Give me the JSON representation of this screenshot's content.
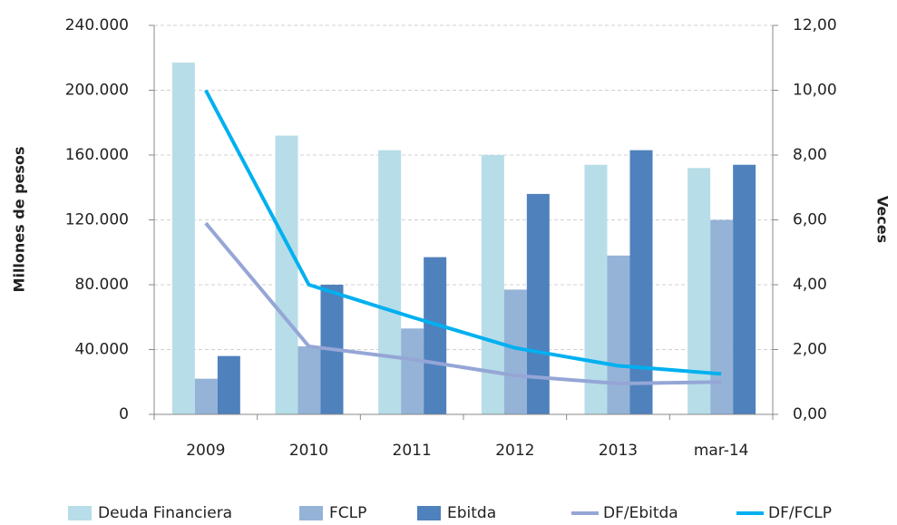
{
  "chart_data": {
    "type": "bar",
    "categories": [
      "2009",
      "2010",
      "2011",
      "2012",
      "2013",
      "mar-14"
    ],
    "ylabel": "Millones de pesos",
    "y2label": "Veces",
    "ylim": [
      0,
      240000
    ],
    "yticks": [
      0,
      {
        "value": 40000,
        "label": "40.000"
      },
      {
        "value": 80000,
        "label": "80.000"
      },
      {
        "value": 120000,
        "label": "120.000"
      },
      {
        "value": 160000,
        "label": "160.000"
      },
      {
        "value": 200000,
        "label": "200.000"
      },
      {
        "value": 240000,
        "label": "240.000"
      }
    ],
    "y2lim": [
      0,
      12
    ],
    "y2ticks": [
      {
        "value": 0,
        "label": "0,00"
      },
      {
        "value": 2,
        "label": "2,00"
      },
      {
        "value": 4,
        "label": "4,00"
      },
      {
        "value": 6,
        "label": "6,00"
      },
      {
        "value": 8,
        "label": "8,00"
      },
      {
        "value": 10,
        "label": "10,00"
      },
      {
        "value": 12,
        "label": "12,00"
      }
    ],
    "grid": true,
    "legend": "bottom",
    "series": [
      {
        "name": "Deuda Financiera",
        "type": "bar",
        "color": "#b7dde8",
        "values": [
          217000,
          172000,
          163000,
          160000,
          154000,
          152000
        ]
      },
      {
        "name": "FCLP",
        "type": "bar",
        "color": "#95b3d7",
        "values": [
          22000,
          42000,
          53000,
          77000,
          98000,
          120000
        ]
      },
      {
        "name": "Ebitda",
        "type": "bar",
        "color": "#4f81bd",
        "values": [
          36000,
          80000,
          97000,
          136000,
          163000,
          154000
        ]
      },
      {
        "name": "DF/Ebitda",
        "type": "line",
        "axis": "y2",
        "color": "#95a6d6",
        "values": [
          5.9,
          2.1,
          1.7,
          1.2,
          0.95,
          1.0
        ]
      },
      {
        "name": "DF/FCLP",
        "type": "line",
        "axis": "y2",
        "color": "#00b0f0",
        "values": [
          10.0,
          4.0,
          3.0,
          2.05,
          1.5,
          1.25
        ]
      }
    ]
  }
}
